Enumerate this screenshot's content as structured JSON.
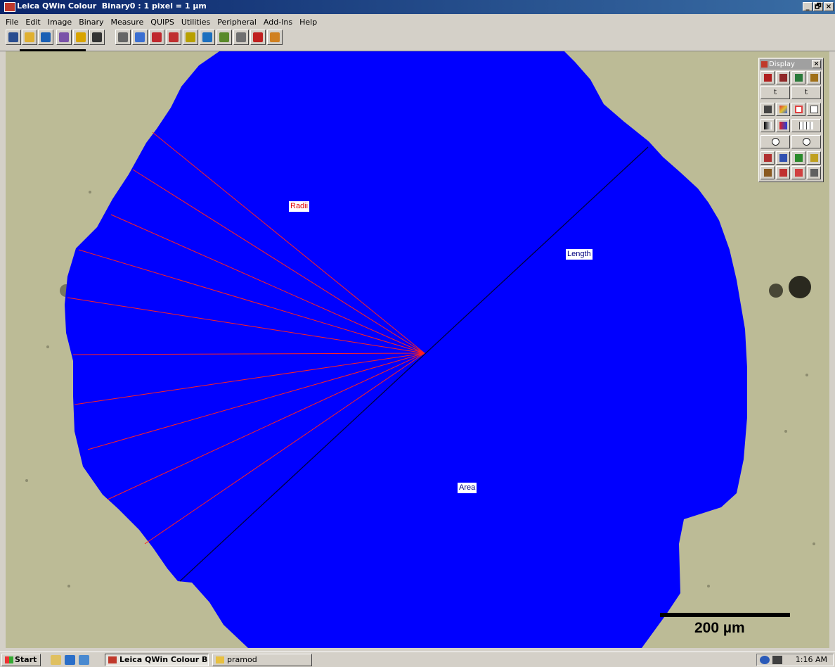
{
  "window": {
    "title": "Leica QWin Colour  Binary0 : 1 pixel = 1 µm",
    "controls": [
      "_",
      "🗗",
      "×"
    ]
  },
  "menu": [
    "File",
    "Edit",
    "Image",
    "Binary",
    "Measure",
    "QUIPS",
    "Utilities",
    "Peripheral",
    "Add-Ins",
    "Help"
  ],
  "toolbar": {
    "icons": [
      "monitor-icon",
      "open-folder-icon",
      "filter-icon",
      "grid-icon",
      "probe-icon",
      "camera-icon",
      "crossed-lines-icon",
      "frame-icon",
      "pen-icon",
      "binary-image-icon",
      "detect-icon",
      "histogram-icon",
      "tiles-icon",
      "list-icon",
      "fill-icon",
      "measure-tool-icon"
    ]
  },
  "image": {
    "labels": {
      "radii": "Radii",
      "length": "Length",
      "area": "Area"
    },
    "scale_bar": "200 µm",
    "colors": {
      "background": "#bcbb96",
      "region": "#0000ff",
      "radii": "#ff2020",
      "length": "#000040"
    }
  },
  "display_palette": {
    "title": "Display",
    "close": "×",
    "text_buttons": [
      "t",
      "t"
    ]
  },
  "taskbar": {
    "start": "Start",
    "tasks": [
      "Leica QWin Colour  Bin...",
      "pramod"
    ],
    "clock": "1:16 AM"
  }
}
